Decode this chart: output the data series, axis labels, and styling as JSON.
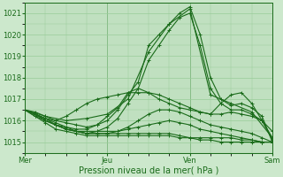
{
  "xlabel": "Pression niveau de la mer( hPa )",
  "bg_color": "#cce8cc",
  "plot_bg_color": "#c0e0c0",
  "grid_color": "#99cc99",
  "line_color": "#1a6b1a",
  "ylim": [
    1014.5,
    1021.5
  ],
  "xlim": [
    0,
    72
  ],
  "yticks": [
    1015,
    1016,
    1017,
    1018,
    1019,
    1020,
    1021
  ],
  "xtick_positions": [
    0,
    24,
    48,
    72
  ],
  "xtick_labels": [
    "Mer",
    "Jeu",
    "Ven",
    "Sam"
  ],
  "series": [
    [
      0,
      1016.5,
      3,
      1016.4,
      6,
      1016.2,
      9,
      1016.0,
      12,
      1015.9,
      15,
      1015.8,
      18,
      1015.7,
      21,
      1015.8,
      24,
      1016.0,
      27,
      1016.5,
      30,
      1017.2,
      33,
      1017.8,
      36,
      1019.5,
      39,
      1020.0,
      42,
      1020.5,
      45,
      1021.0,
      48,
      1021.3,
      51,
      1020.0,
      54,
      1018.0,
      57,
      1017.0,
      60,
      1016.7,
      63,
      1016.8,
      66,
      1016.6,
      69,
      1016.2,
      72,
      1015.0
    ],
    [
      0,
      1016.5,
      3,
      1016.3,
      6,
      1016.1,
      9,
      1015.9,
      12,
      1015.7,
      15,
      1015.5,
      18,
      1015.4,
      21,
      1015.5,
      24,
      1015.7,
      27,
      1016.1,
      30,
      1016.8,
      33,
      1017.5,
      36,
      1018.8,
      39,
      1019.5,
      42,
      1020.2,
      45,
      1020.8,
      48,
      1021.0,
      51,
      1019.5,
      54,
      1017.5,
      57,
      1016.8,
      60,
      1016.5,
      63,
      1016.5,
      66,
      1016.3,
      69,
      1016.0,
      72,
      1015.1
    ],
    [
      0,
      1016.5,
      6,
      1016.2,
      12,
      1016.0,
      18,
      1016.1,
      24,
      1016.3,
      30,
      1017.0,
      36,
      1019.2,
      42,
      1020.5,
      48,
      1021.2,
      54,
      1017.2,
      60,
      1016.8,
      66,
      1016.4,
      72,
      1015.2
    ],
    [
      0,
      1016.5,
      3,
      1016.3,
      6,
      1016.1,
      9,
      1016.0,
      12,
      1016.2,
      15,
      1016.5,
      18,
      1016.8,
      21,
      1017.0,
      24,
      1017.1,
      27,
      1017.2,
      30,
      1017.3,
      33,
      1017.3,
      36,
      1017.3,
      39,
      1017.2,
      42,
      1017.0,
      45,
      1016.8,
      48,
      1016.6,
      51,
      1016.4,
      54,
      1016.3,
      57,
      1016.3,
      60,
      1016.4,
      63,
      1016.3,
      66,
      1016.2,
      69,
      1016.0,
      72,
      1015.5
    ],
    [
      0,
      1016.5,
      3,
      1016.2,
      6,
      1016.0,
      9,
      1015.8,
      12,
      1015.6,
      15,
      1015.5,
      18,
      1015.5,
      21,
      1015.5,
      24,
      1015.5,
      27,
      1015.5,
      30,
      1015.6,
      33,
      1015.7,
      36,
      1015.8,
      39,
      1015.9,
      42,
      1016.0,
      45,
      1015.9,
      48,
      1015.8,
      51,
      1015.6,
      54,
      1015.5,
      57,
      1015.4,
      60,
      1015.3,
      63,
      1015.2,
      66,
      1015.1,
      69,
      1015.0,
      72,
      1015.0
    ],
    [
      0,
      1016.5,
      3,
      1016.3,
      6,
      1016.0,
      9,
      1015.8,
      12,
      1015.6,
      15,
      1015.5,
      18,
      1015.4,
      21,
      1015.4,
      24,
      1015.4,
      27,
      1015.4,
      30,
      1015.4,
      33,
      1015.4,
      36,
      1015.4,
      39,
      1015.4,
      42,
      1015.4,
      45,
      1015.3,
      48,
      1015.2,
      51,
      1015.2,
      54,
      1015.2,
      57,
      1015.2,
      60,
      1015.2,
      63,
      1015.1,
      66,
      1015.1,
      69,
      1015.0,
      72,
      1015.0
    ],
    [
      0,
      1016.5,
      3,
      1016.3,
      6,
      1016.1,
      9,
      1015.8,
      12,
      1015.7,
      15,
      1015.6,
      18,
      1015.6,
      21,
      1015.8,
      24,
      1016.2,
      27,
      1016.6,
      30,
      1017.3,
      33,
      1017.5,
      36,
      1017.3,
      39,
      1017.0,
      42,
      1016.8,
      45,
      1016.6,
      48,
      1016.5,
      51,
      1016.4,
      54,
      1016.3,
      57,
      1016.8,
      60,
      1017.2,
      63,
      1017.3,
      66,
      1016.8,
      69,
      1016.0,
      72,
      1015.2
    ],
    [
      0,
      1016.5,
      3,
      1016.3,
      6,
      1016.0,
      9,
      1015.8,
      12,
      1015.6,
      15,
      1015.5,
      18,
      1015.4,
      21,
      1015.4,
      24,
      1015.4,
      27,
      1015.5,
      30,
      1015.7,
      33,
      1016.0,
      36,
      1016.3,
      39,
      1016.5,
      42,
      1016.5,
      45,
      1016.4,
      48,
      1016.2,
      51,
      1016.0,
      54,
      1015.8,
      57,
      1015.7,
      60,
      1015.6,
      63,
      1015.5,
      66,
      1015.4,
      69,
      1015.2,
      72,
      1015.0
    ],
    [
      0,
      1016.5,
      3,
      1016.2,
      6,
      1015.9,
      9,
      1015.6,
      12,
      1015.5,
      15,
      1015.4,
      18,
      1015.3,
      21,
      1015.3,
      24,
      1015.3,
      27,
      1015.3,
      30,
      1015.3,
      33,
      1015.3,
      36,
      1015.3,
      39,
      1015.3,
      42,
      1015.3,
      45,
      1015.2,
      48,
      1015.2,
      51,
      1015.1,
      54,
      1015.1,
      57,
      1015.0,
      60,
      1015.0,
      63,
      1015.0,
      66,
      1015.0,
      69,
      1015.0,
      72,
      1015.0
    ]
  ]
}
